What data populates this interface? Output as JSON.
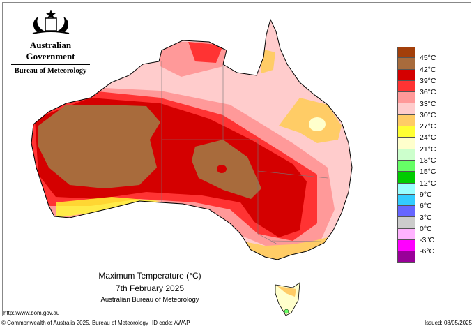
{
  "header": {
    "logo_text": "Commonwealth Coat of Arms",
    "government": "Australian Government",
    "bureau": "Bureau of Meteorology"
  },
  "map": {
    "title": "Maximum Temperature (°C)",
    "date": "7th February 2025",
    "source": "Australian Bureau of Meteorology"
  },
  "legend": {
    "colors": [
      "#a33f0a",
      "#a86b3c",
      "#d40000",
      "#ff3333",
      "#ff9999",
      "#ffcccc",
      "#ffcc66",
      "#ffff33",
      "#ffffcc",
      "#ccffcc",
      "#66ff66",
      "#00cc00",
      "#99ffff",
      "#33ccff",
      "#6666ff",
      "#cccccc",
      "#ffb3ff",
      "#ff00ff",
      "#990099"
    ],
    "labels": [
      "45°C",
      "42°C",
      "39°C",
      "36°C",
      "33°C",
      "30°C",
      "27°C",
      "24°C",
      "21°C",
      "18°C",
      "15°C",
      "12°C",
      "9°C",
      "6°C",
      "3°C",
      "0°C",
      "-3°C",
      "-6°C"
    ]
  },
  "footer": {
    "url": "http://www.bom.gov.au",
    "copyright": "© Commonwealth of Australia 2025, Bureau of Meteorology",
    "id_code": "ID code: AWAP",
    "issued": "Issued: 08/05/2025"
  }
}
